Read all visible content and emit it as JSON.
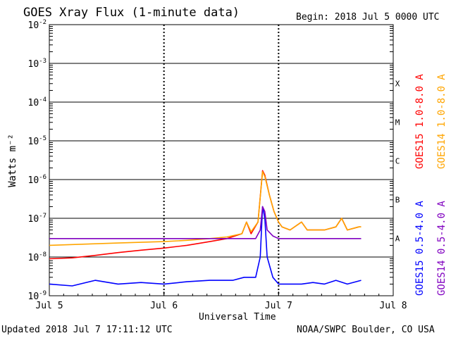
{
  "header": {
    "title": "GOES Xray Flux (1-minute data)",
    "begin": "Begin:  2018 Jul 5 0000 UTC"
  },
  "footer": {
    "updated": "Updated 2018 Jul  7 17:11:12 UTC",
    "credit": "NOAA/SWPC Boulder, CO USA"
  },
  "chart_data": {
    "type": "line",
    "title": "GOES Xray Flux (1-minute data)",
    "xlabel": "Universal Time",
    "ylabel": "Watts m⁻²",
    "y_scale": "log",
    "ylim": [
      1e-09,
      0.01
    ],
    "xlim": [
      0,
      3
    ],
    "x_ticks": [
      {
        "value": 0,
        "label": "Jul 5"
      },
      {
        "value": 1,
        "label": "Jul 6"
      },
      {
        "value": 2,
        "label": "Jul 7"
      },
      {
        "value": 3,
        "label": "Jul 8"
      }
    ],
    "y_ticks": [
      {
        "exp": -9,
        "label": "10-9"
      },
      {
        "exp": -8,
        "label": "10-8"
      },
      {
        "exp": -7,
        "label": "10-7"
      },
      {
        "exp": -6,
        "label": "10-6"
      },
      {
        "exp": -5,
        "label": "10-5"
      },
      {
        "exp": -4,
        "label": "10-4"
      },
      {
        "exp": -3,
        "label": "10-3"
      },
      {
        "exp": -2,
        "label": "10-2"
      }
    ],
    "flare_classes": [
      {
        "label": "A",
        "exp": -8
      },
      {
        "label": "B",
        "exp": -7
      },
      {
        "label": "C",
        "exp": -6
      },
      {
        "label": "M",
        "exp": -5
      },
      {
        "label": "X",
        "exp": -4
      }
    ],
    "grid": true,
    "legend_position": "right (vertical)",
    "series": [
      {
        "name": "GOES15 1.0-8.0 A",
        "color": "#ff0000",
        "x": [
          0,
          0.2,
          0.4,
          0.6,
          0.8,
          1.0,
          1.2,
          1.4,
          1.55,
          1.68,
          1.72,
          1.76,
          1.82,
          1.86,
          1.88,
          1.92,
          1.96,
          2.0,
          2.03,
          2.1,
          2.2,
          2.25,
          2.3,
          2.4,
          2.5,
          2.55,
          2.6,
          2.7,
          2.72
        ],
        "values": [
          9e-09,
          9.5e-09,
          1.1e-08,
          1.3e-08,
          1.5e-08,
          1.7e-08,
          2e-08,
          2.5e-08,
          3e-08,
          4e-08,
          8e-08,
          4e-08,
          8e-08,
          1.7e-06,
          1.3e-06,
          4e-07,
          1.5e-07,
          8e-08,
          6e-08,
          5e-08,
          8e-08,
          5e-08,
          5e-08,
          5e-08,
          6e-08,
          1e-07,
          5e-08,
          6e-08,
          6e-08
        ]
      },
      {
        "name": "GOES14 1.0-8.0 A",
        "color": "#ffa500",
        "x": [
          0,
          0.2,
          0.4,
          0.6,
          0.8,
          1.0,
          1.2,
          1.4,
          1.55,
          1.68,
          1.72,
          1.76,
          1.82,
          1.86,
          1.88,
          1.92,
          1.96,
          2.0,
          2.03,
          2.1,
          2.2,
          2.25,
          2.3,
          2.4,
          2.5,
          2.55,
          2.6,
          2.7,
          2.72
        ],
        "values": [
          2e-08,
          2.1e-08,
          2.2e-08,
          2.3e-08,
          2.4e-08,
          2.5e-08,
          2.7e-08,
          3e-08,
          3.3e-08,
          4e-08,
          8e-08,
          4.5e-08,
          8e-08,
          1.6e-06,
          1.2e-06,
          4e-07,
          1.5e-07,
          8e-08,
          6e-08,
          5e-08,
          8e-08,
          5e-08,
          5e-08,
          5e-08,
          6e-08,
          1e-07,
          5e-08,
          6e-08,
          6e-08
        ]
      },
      {
        "name": "GOES15 0.5-4.0 A",
        "color": "#0000ff",
        "x": [
          0,
          0.2,
          0.4,
          0.6,
          0.8,
          1.0,
          1.2,
          1.4,
          1.6,
          1.7,
          1.8,
          1.84,
          1.86,
          1.88,
          1.9,
          1.95,
          2.0,
          2.1,
          2.2,
          2.3,
          2.4,
          2.5,
          2.6,
          2.72
        ],
        "values": [
          2e-09,
          1.8e-09,
          2.5e-09,
          2e-09,
          2.2e-09,
          2e-09,
          2.3e-09,
          2.5e-09,
          2.5e-09,
          3e-09,
          3e-09,
          1e-08,
          2e-07,
          1e-07,
          1e-08,
          3e-09,
          2e-09,
          2e-09,
          2e-09,
          2.2e-09,
          2e-09,
          2.5e-09,
          2e-09,
          2.5e-09
        ]
      },
      {
        "name": "GOES14 0.5-4.0 A",
        "color": "#8000c0",
        "x": [
          0,
          0.2,
          0.4,
          0.6,
          0.8,
          1.0,
          1.2,
          1.4,
          1.6,
          1.7,
          1.8,
          1.84,
          1.86,
          1.88,
          1.9,
          1.95,
          2.0,
          2.1,
          2.2,
          2.3,
          2.4,
          2.5,
          2.6,
          2.72
        ],
        "values": [
          3e-08,
          3e-08,
          3e-08,
          3e-08,
          3e-08,
          3e-08,
          3e-08,
          3e-08,
          3e-08,
          3e-08,
          3e-08,
          5e-08,
          2e-07,
          1.5e-07,
          5e-08,
          3.5e-08,
          3e-08,
          3e-08,
          3e-08,
          3e-08,
          3e-08,
          3e-08,
          3e-08,
          3e-08
        ]
      }
    ]
  }
}
